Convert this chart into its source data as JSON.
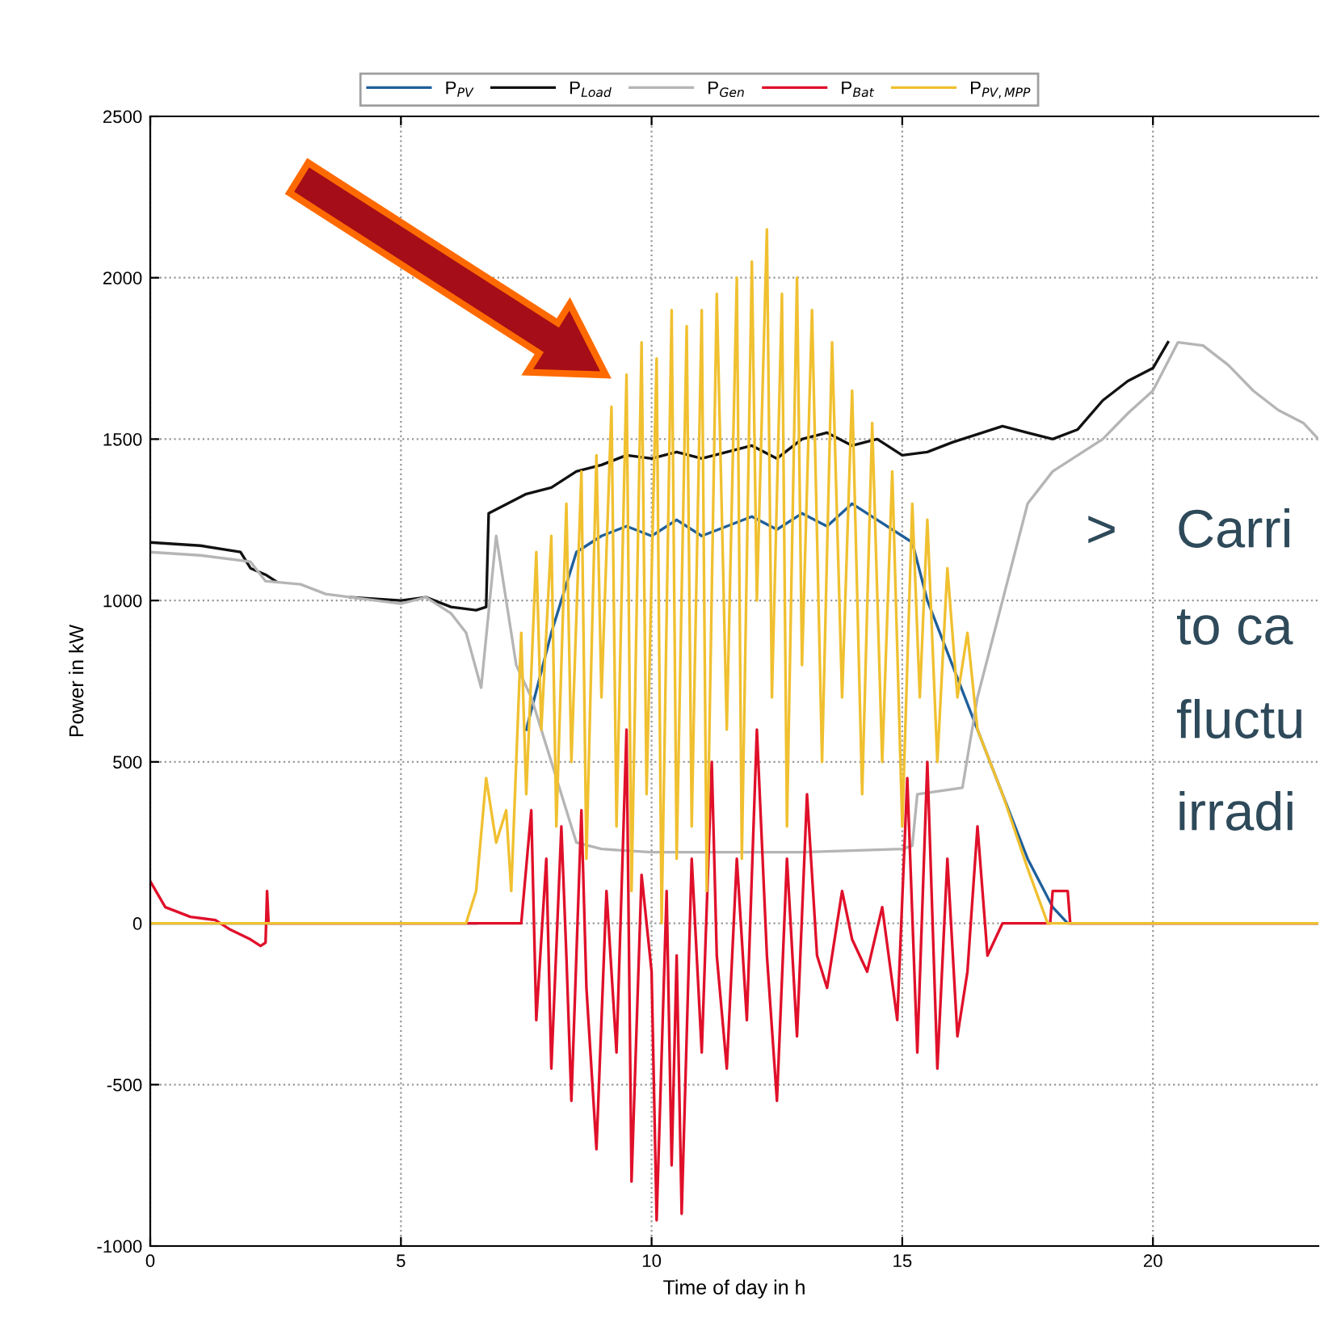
{
  "chart_data": {
    "type": "line",
    "xlabel": "Time of day in h",
    "ylabel": "Power in kW",
    "xlim": [
      0,
      23.3
    ],
    "xticks": [
      0,
      5,
      10,
      15,
      20
    ],
    "ylim": [
      -1000,
      2500
    ],
    "yticks": [
      -1000,
      -500,
      0,
      500,
      1000,
      1500,
      2000,
      2500
    ],
    "grid": true,
    "legend": "top",
    "line_style": "solid",
    "marker": "none",
    "annotations": [
      ">",
      "Carri",
      "to ca",
      "fluctu",
      "irradi"
    ],
    "series": [
      {
        "name": "P$_{PV}$",
        "color": "#1f5f9a",
        "x": [
          0,
          6.5,
          7,
          7.5,
          8,
          8.5,
          9,
          9.5,
          10,
          10.5,
          11,
          11.5,
          12,
          12.5,
          13,
          13.5,
          14,
          14.5,
          15,
          15.2,
          15.5,
          16,
          16.5,
          17,
          17.5,
          18,
          18.3,
          23.3
        ],
        "values": [
          0,
          0,
          null,
          600,
          900,
          1150,
          1200,
          1230,
          1200,
          1250,
          1200,
          1230,
          1260,
          1220,
          1270,
          1230,
          1300,
          1250,
          1200,
          1180,
          1000,
          800,
          600,
          400,
          200,
          50,
          0,
          0
        ]
      },
      {
        "name": "P$_{Load}$",
        "color": "#111111",
        "x": [
          0,
          1,
          1.8,
          2.0,
          2.3,
          2.5,
          3,
          3.5,
          4,
          5,
          5.5,
          6,
          6.5,
          6.7,
          6.75,
          7.5,
          8,
          8.5,
          9,
          9.5,
          10,
          10.5,
          11,
          11.5,
          12,
          12.5,
          13,
          13.5,
          14,
          14.5,
          15,
          15.5,
          16,
          17,
          18,
          18.5,
          19,
          19.5,
          20,
          20.3
        ],
        "values": [
          1180,
          1170,
          1150,
          1100,
          1080,
          1060,
          null,
          null,
          1010,
          1000,
          1010,
          980,
          970,
          980,
          1270,
          1330,
          1350,
          1400,
          1420,
          1450,
          1440,
          1460,
          1440,
          1460,
          1480,
          1440,
          1500,
          1520,
          1480,
          1500,
          1450,
          1460,
          1490,
          1540,
          1500,
          1530,
          1620,
          1680,
          1720,
          1800
        ]
      },
      {
        "name": "P$_{Gen}$",
        "color": "#b5b5b5",
        "x": [
          0,
          1,
          2,
          2.3,
          3,
          3.5,
          4,
          5,
          5.5,
          6,
          6.3,
          6.6,
          6.9,
          7.1,
          7.3,
          7.6,
          8.0,
          8.5,
          9,
          10,
          11,
          12,
          13,
          14,
          15,
          15.2,
          15.3,
          16.2,
          16.5,
          17,
          17.5,
          18,
          18.5,
          19,
          19.5,
          20,
          20.5,
          21,
          21.5,
          22,
          22.5,
          23,
          23.3
        ],
        "values": [
          1150,
          1140,
          1120,
          1060,
          1050,
          1020,
          1010,
          990,
          1010,
          960,
          900,
          730,
          1200,
          1000,
          800,
          700,
          500,
          250,
          230,
          220,
          220,
          220,
          220,
          225,
          230,
          240,
          400,
          420,
          700,
          1000,
          1300,
          1400,
          1450,
          1500,
          1580,
          1650,
          1800,
          1790,
          1730,
          1650,
          1590,
          1550,
          1500
        ]
      },
      {
        "name": "P$_{Bat}$",
        "color": "#e0102a",
        "x": [
          0,
          0.3,
          0.8,
          1.3,
          1.6,
          2.0,
          2.2,
          2.3,
          2.33,
          2.36,
          7.4,
          7.6,
          7.7,
          7.9,
          8.0,
          8.2,
          8.3,
          8.4,
          8.6,
          8.7,
          8.9,
          9.1,
          9.3,
          9.5,
          9.6,
          9.8,
          10.0,
          10.1,
          10.3,
          10.4,
          10.5,
          10.6,
          10.8,
          11.0,
          11.2,
          11.3,
          11.5,
          11.7,
          11.9,
          12.1,
          12.3,
          12.5,
          12.7,
          12.9,
          13.1,
          13.3,
          13.5,
          13.8,
          14.0,
          14.3,
          14.6,
          14.9,
          15.1,
          15.3,
          15.5,
          15.7,
          15.9,
          16.1,
          16.3,
          16.5,
          16.7,
          17.0,
          17.95,
          18.0,
          18.3,
          18.35,
          23.3
        ],
        "values": [
          130,
          50,
          20,
          10,
          -20,
          -50,
          -70,
          -60,
          100,
          0,
          0,
          350,
          -300,
          200,
          -450,
          300,
          -100,
          -550,
          350,
          -200,
          -700,
          100,
          -400,
          600,
          -800,
          150,
          -150,
          -920,
          100,
          -750,
          -100,
          -900,
          200,
          -400,
          500,
          -100,
          -450,
          200,
          -300,
          600,
          -100,
          -550,
          200,
          -350,
          400,
          -100,
          -200,
          100,
          -50,
          -150,
          50,
          -300,
          450,
          -400,
          500,
          -450,
          200,
          -350,
          -150,
          300,
          -100,
          0,
          0,
          100,
          100,
          0,
          0
        ]
      },
      {
        "name": "P$_{PV,MPP}$",
        "color": "#f0c030",
        "x": [
          0,
          6.3,
          6.5,
          6.7,
          6.9,
          7.1,
          7.2,
          7.4,
          7.5,
          7.7,
          7.8,
          8.0,
          8.1,
          8.3,
          8.4,
          8.6,
          8.7,
          8.9,
          9.0,
          9.2,
          9.3,
          9.5,
          9.6,
          9.8,
          9.9,
          10.1,
          10.2,
          10.4,
          10.5,
          10.7,
          10.8,
          11.0,
          11.1,
          11.3,
          11.5,
          11.7,
          11.8,
          12.0,
          12.1,
          12.3,
          12.4,
          12.6,
          12.7,
          12.9,
          13.0,
          13.2,
          13.4,
          13.6,
          13.8,
          14.0,
          14.2,
          14.4,
          14.6,
          14.8,
          15.0,
          15.2,
          15.35,
          15.5,
          15.7,
          15.9,
          16.1,
          16.3,
          16.5,
          17,
          17.5,
          17.9,
          23.3
        ],
        "values": [
          0,
          0,
          100,
          450,
          250,
          350,
          100,
          900,
          400,
          1150,
          600,
          1200,
          300,
          1300,
          500,
          1400,
          200,
          1450,
          700,
          1600,
          300,
          1700,
          100,
          1800,
          400,
          1750,
          0,
          1900,
          200,
          1850,
          300,
          1900,
          100,
          1950,
          600,
          2000,
          200,
          2050,
          1000,
          2150,
          700,
          1950,
          300,
          2000,
          800,
          1900,
          500,
          1800,
          700,
          1650,
          400,
          1550,
          500,
          1400,
          300,
          1300,
          700,
          1250,
          500,
          1100,
          700,
          900,
          600,
          400,
          170,
          0,
          0
        ]
      }
    ]
  }
}
